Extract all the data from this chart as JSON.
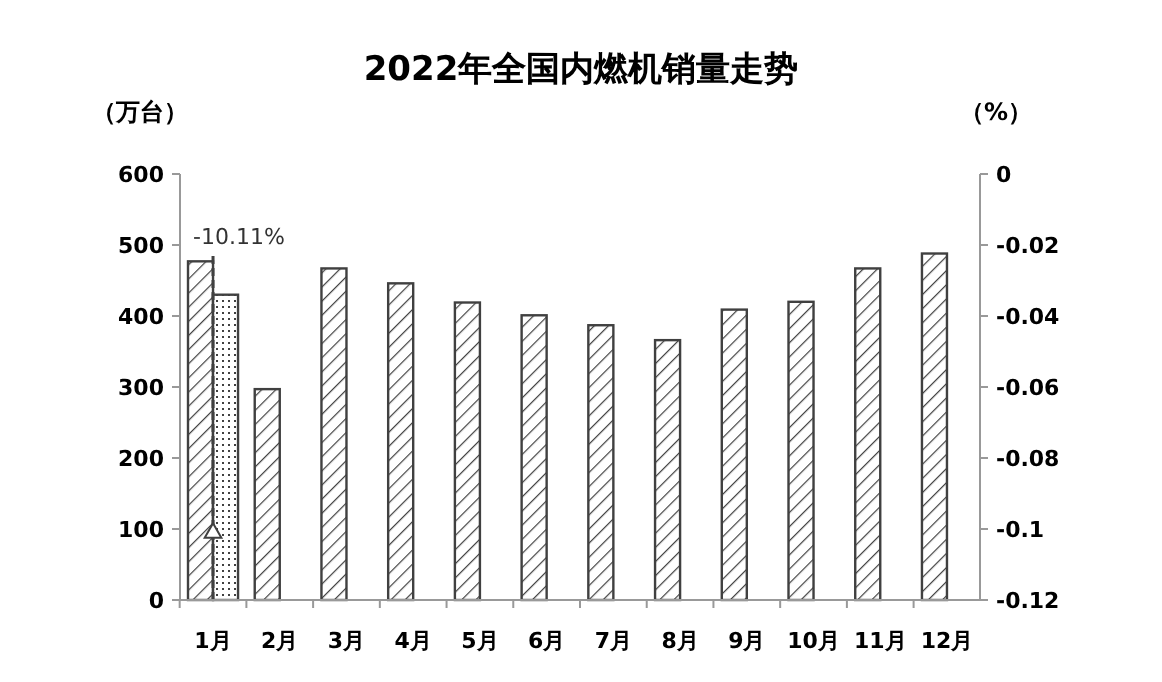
{
  "chart_data": {
    "type": "bar",
    "title": "2022年全国内燃机销量走势",
    "ylabel": "（万台）",
    "y2label": "（%）",
    "categories": [
      "1月",
      "2月",
      "3月",
      "4月",
      "5月",
      "6月",
      "7月",
      "8月",
      "9月",
      "10月",
      "11月",
      "12月"
    ],
    "series": [
      {
        "color": "#404040",
        "values": [
          477,
          297,
          467,
          446,
          419,
          401,
          387,
          366,
          409,
          420,
          467,
          488
        ]
      },
      {
        "color": "#404040",
        "values": [
          430,
          null,
          null,
          null,
          null,
          null,
          null,
          null,
          null,
          null,
          null,
          null
        ]
      },
      {
        "type": "scatter",
        "axis": "y2",
        "marker": "triangle",
        "color": "#404040",
        "values": [
          -0.1011,
          null,
          null,
          null,
          null,
          null,
          null,
          null,
          null,
          null,
          null,
          null
        ]
      }
    ],
    "ylim": [
      0,
      600
    ],
    "yticks": [
      0,
      100,
      200,
      300,
      400,
      500,
      600
    ],
    "y2lim": [
      -0.12,
      0
    ],
    "y2ticks": [
      -0.12,
      -0.1,
      -0.08,
      -0.06,
      -0.04,
      -0.02,
      0
    ],
    "annotations": [
      "-10.11%"
    ]
  }
}
